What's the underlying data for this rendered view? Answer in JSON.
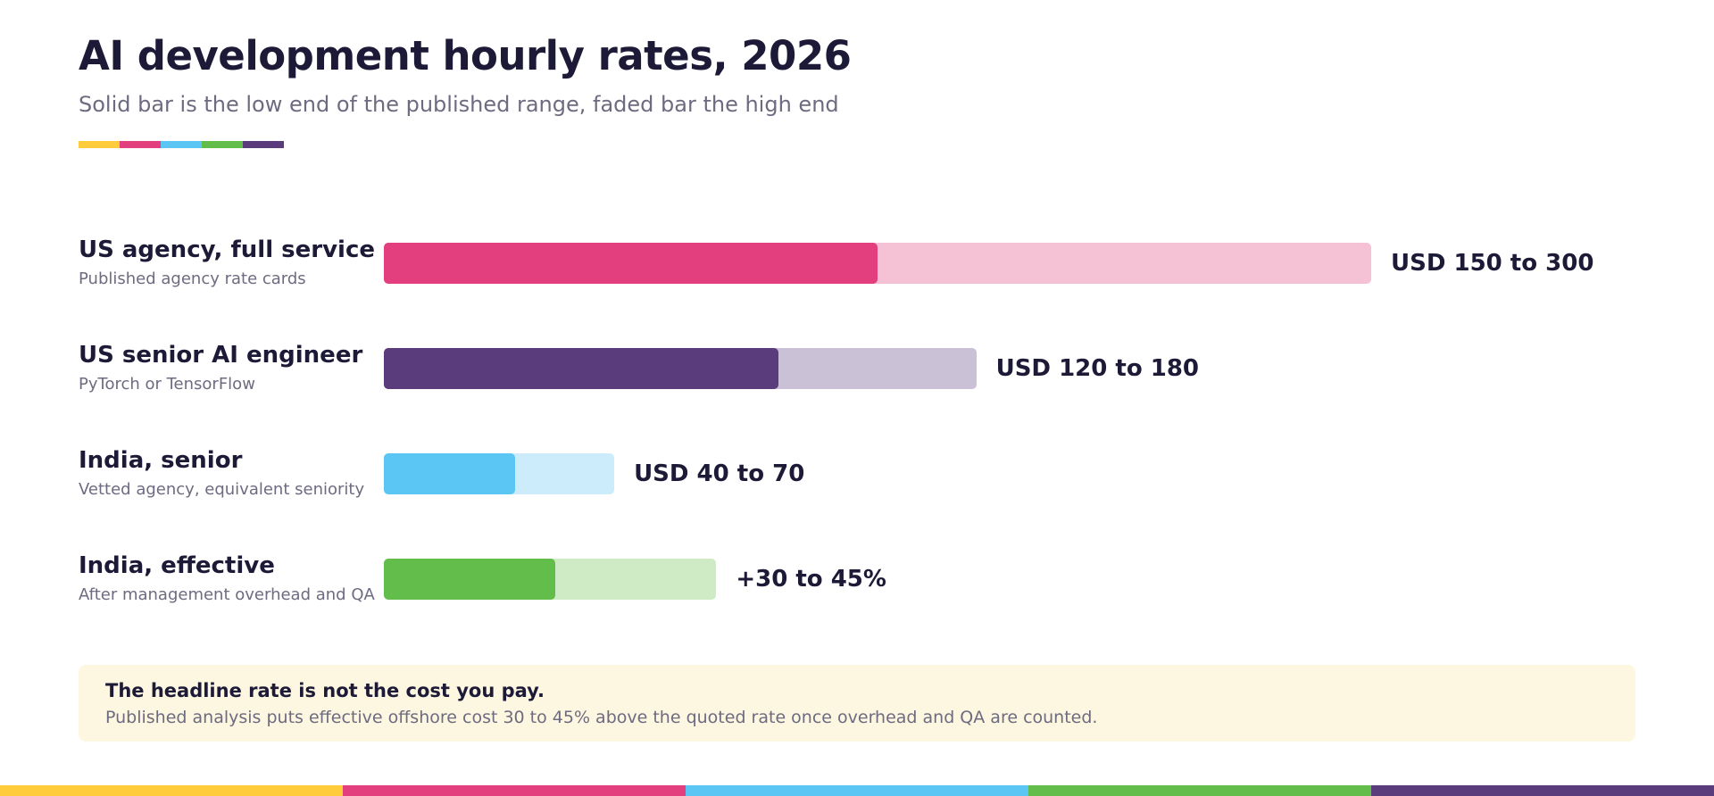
{
  "header": {
    "title": "AI development hourly rates, 2026",
    "subtitle": "Solid bar is the low end of the published range, faded bar the high end"
  },
  "palette": [
    "#ffcd3c",
    "#e33e7d",
    "#5bc6f3",
    "#63bd4b",
    "#5a3b7c"
  ],
  "chart_data": {
    "type": "bar",
    "orientation": "horizontal",
    "title": "AI development hourly rates, 2026",
    "subtitle": "Solid bar is the low end of the published range, faded bar the high end",
    "rows": [
      {
        "name": "US agency, full service",
        "note": "Published agency rate cards",
        "low": 150,
        "high": 300,
        "value_label": "USD 150 to 300",
        "color": "#e33e7d",
        "faded_color": "#f5c1d5"
      },
      {
        "name": "US senior AI engineer",
        "note": "PyTorch or TensorFlow",
        "low": 120,
        "high": 180,
        "value_label": "USD 120 to 180",
        "color": "#5a3b7c",
        "faded_color": "#cbc1d6"
      },
      {
        "name": "India, senior",
        "note": "Vetted agency, equivalent seniority",
        "low": 40,
        "high": 70,
        "value_label": "USD 40 to 70",
        "color": "#5bc6f3",
        "faded_color": "#ccecfb"
      },
      {
        "name": "India, effective",
        "note": "After management overhead and QA",
        "low": 52,
        "high": 101,
        "value_label": "+30 to 45%",
        "color": "#63bd4b",
        "faded_color": "#cfebc6"
      }
    ],
    "xlim": [
      0,
      300
    ]
  },
  "callout": {
    "heading": "The headline rate is not the cost you pay.",
    "body": "Published analysis puts effective offshore cost 30 to 45% above the quoted rate once overhead and QA are counted."
  }
}
